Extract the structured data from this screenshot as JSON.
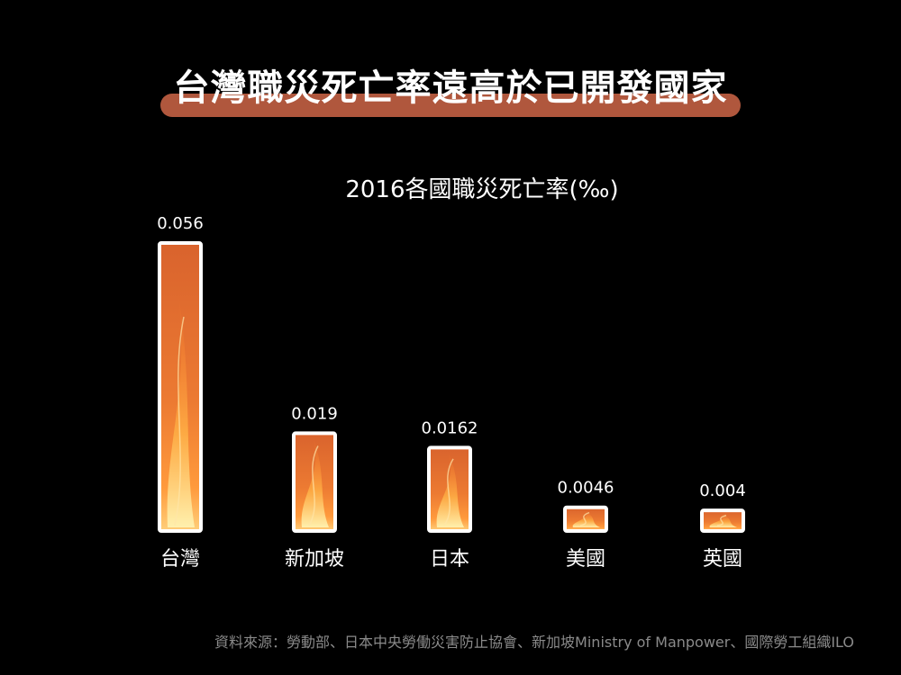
{
  "headline": "台灣職災死亡率遠高於已開發國家",
  "source": "資料來源：勞動部、日本中央勞働災害防止協會、新加坡Ministry of Manpower、國際勞工組織ILO",
  "colors": {
    "bar_fill": "#e8702f",
    "bar_border": "#ffffff",
    "headline_bar": "#b0573d"
  },
  "chart_data": {
    "type": "bar",
    "title": "2016各國職災死亡率(‰)",
    "categories": [
      "台灣",
      "新加坡",
      "日本",
      "美國",
      "英國"
    ],
    "values": [
      0.056,
      0.019,
      0.0162,
      0.0046,
      0.004
    ],
    "value_labels": [
      "0.056",
      "0.019",
      "0.0162",
      "0.0046",
      "0.004"
    ],
    "ylim": [
      0,
      0.056
    ],
    "grid": false,
    "legend": "none"
  }
}
